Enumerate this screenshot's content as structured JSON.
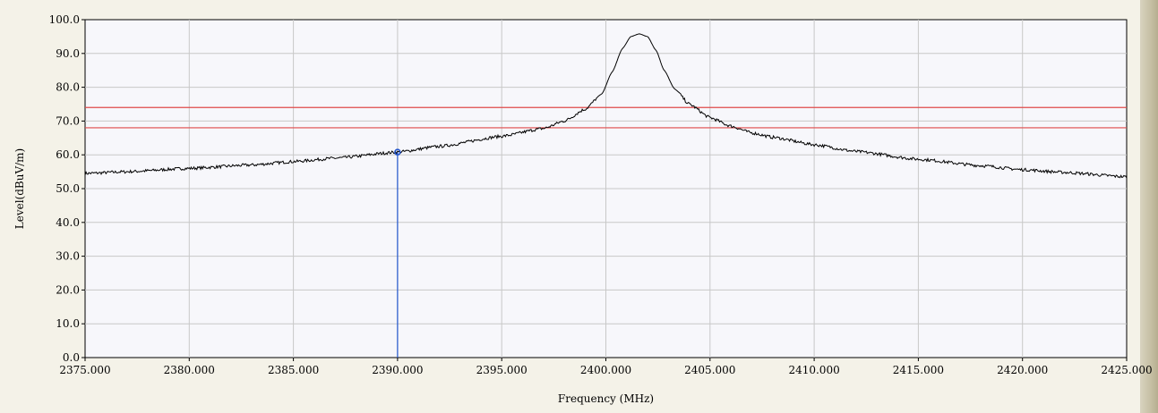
{
  "chart_data": {
    "type": "line",
    "title": "",
    "xlabel": "Frequency (MHz)",
    "ylabel": "Level(dBuV/m)",
    "xlim": [
      2375,
      2425
    ],
    "ylim": [
      0,
      100
    ],
    "x_ticks": [
      "2375.000",
      "2380.000",
      "2385.000",
      "2390.000",
      "2395.000",
      "2400.000",
      "2405.000",
      "2410.000",
      "2415.000",
      "2420.000",
      "2425.000"
    ],
    "y_ticks": [
      "0.0",
      "10.0",
      "20.0",
      "30.0",
      "40.0",
      "50.0",
      "60.0",
      "70.0",
      "80.0",
      "90.0",
      "100.0"
    ],
    "grid": true,
    "limit_lines": [
      {
        "value": 74.0,
        "color": "#e04a4a"
      },
      {
        "value": 68.0,
        "color": "#e04a4a"
      }
    ],
    "marker": {
      "x": 2390.0,
      "y": 60.8,
      "color": "#2255cc"
    },
    "series": [
      {
        "color": "#000000",
        "x": [
          2375,
          2377,
          2380,
          2383,
          2385,
          2387,
          2390,
          2392,
          2395,
          2397,
          2398,
          2399,
          2399.8,
          2400.3,
          2400.8,
          2401.2,
          2401.6,
          2402.0,
          2402.4,
          2402.8,
          2403.3,
          2404,
          2405,
          2406,
          2407,
          2408,
          2410,
          2412,
          2415,
          2418,
          2420,
          2422,
          2425
        ],
        "y": [
          54.5,
          55.0,
          56.0,
          57.0,
          58.0,
          59.0,
          60.8,
          62.5,
          65.5,
          67.8,
          70.0,
          73.5,
          78.0,
          84.5,
          91.5,
          95.0,
          95.8,
          95.0,
          91.0,
          85.0,
          79.5,
          75.0,
          71.0,
          68.5,
          66.5,
          65.2,
          63.0,
          61.0,
          58.7,
          56.8,
          55.6,
          54.8,
          53.5
        ]
      }
    ]
  }
}
